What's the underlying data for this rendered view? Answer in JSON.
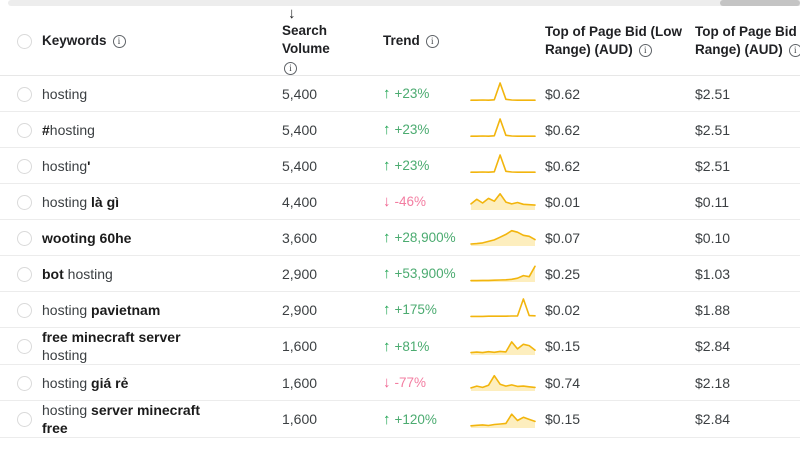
{
  "colors": {
    "trend_up_arrow": "#21a453",
    "trend_up_text": "#4bab70",
    "trend_down_arrow": "#f0628f",
    "trend_down_text": "#f37da1",
    "sparkline": "#f2b50d",
    "sparkline_fill": "#fdeebe",
    "text_dark": "#202124",
    "divider": "#ececec"
  },
  "table": {
    "headers": {
      "keywords": "Keywords",
      "sort_arrow": "↓",
      "search_volume": "Search Volume",
      "trend": "Trend",
      "bid_low": "Top of Page Bid (Low Range) (AUD)",
      "bid_high": "Top of Page Bid (High Range) (AUD)"
    },
    "rows": [
      {
        "keyword_parts": [
          {
            "text": "hosting",
            "bold": false
          }
        ],
        "search_volume": "5,400",
        "trend_direction": "up",
        "trend_value": "+23%",
        "bid_low": "$0.62",
        "bid_high": "$2.51",
        "sparkline": [
          0.07,
          0.07,
          0.08,
          0.07,
          0.09,
          1.0,
          0.12,
          0.08,
          0.07,
          0.07,
          0.07,
          0.07
        ],
        "spark_fill": false
      },
      {
        "keyword_parts": [
          {
            "text": "#",
            "bold": true
          },
          {
            "text": "hosting",
            "bold": false
          }
        ],
        "search_volume": "5,400",
        "trend_direction": "up",
        "trend_value": "+23%",
        "bid_low": "$0.62",
        "bid_high": "$2.51",
        "sparkline": [
          0.07,
          0.07,
          0.08,
          0.07,
          0.09,
          1.0,
          0.12,
          0.08,
          0.07,
          0.07,
          0.07,
          0.07
        ],
        "spark_fill": false
      },
      {
        "keyword_parts": [
          {
            "text": "hosting",
            "bold": false
          },
          {
            "text": "'",
            "bold": true
          }
        ],
        "search_volume": "5,400",
        "trend_direction": "up",
        "trend_value": "+23%",
        "bid_low": "$0.62",
        "bid_high": "$2.51",
        "sparkline": [
          0.07,
          0.07,
          0.08,
          0.07,
          0.09,
          1.0,
          0.12,
          0.08,
          0.07,
          0.07,
          0.07,
          0.07
        ],
        "spark_fill": false
      },
      {
        "keyword_parts": [
          {
            "text": "hosting ",
            "bold": false
          },
          {
            "text": "là gì",
            "bold": true
          }
        ],
        "search_volume": "4,400",
        "trend_direction": "down",
        "trend_value": "-46%",
        "bid_low": "$0.01",
        "bid_high": "$0.11",
        "sparkline": [
          0.3,
          0.55,
          0.35,
          0.6,
          0.45,
          0.85,
          0.4,
          0.3,
          0.38,
          0.28,
          0.26,
          0.24
        ],
        "spark_fill": true
      },
      {
        "keyword_parts": [
          {
            "text": "wooting 60he",
            "bold": true
          }
        ],
        "search_volume": "3,600",
        "trend_direction": "up",
        "trend_value": "+28,900%",
        "bid_low": "$0.07",
        "bid_high": "$0.10",
        "sparkline": [
          0.08,
          0.1,
          0.14,
          0.22,
          0.3,
          0.45,
          0.6,
          0.8,
          0.72,
          0.55,
          0.5,
          0.32
        ],
        "spark_fill": true
      },
      {
        "keyword_parts": [
          {
            "text": "bot",
            "bold": true
          },
          {
            "text": " hosting",
            "bold": false
          }
        ],
        "search_volume": "2,900",
        "trend_direction": "up",
        "trend_value": "+53,900%",
        "bid_low": "$0.25",
        "bid_high": "$1.03",
        "sparkline": [
          0.05,
          0.05,
          0.06,
          0.06,
          0.07,
          0.08,
          0.09,
          0.12,
          0.18,
          0.32,
          0.26,
          0.82
        ],
        "spark_fill": true
      },
      {
        "keyword_parts": [
          {
            "text": "hosting ",
            "bold": false
          },
          {
            "text": "pavietnam",
            "bold": true
          }
        ],
        "search_volume": "2,900",
        "trend_direction": "up",
        "trend_value": "+175%",
        "bid_low": "$0.02",
        "bid_high": "$1.88",
        "sparkline": [
          0.06,
          0.06,
          0.06,
          0.07,
          0.07,
          0.07,
          0.07,
          0.08,
          0.08,
          1.0,
          0.1,
          0.09
        ],
        "spark_fill": false
      },
      {
        "keyword_parts": [
          {
            "text": "free minecraft server",
            "bold": true
          },
          {
            "text": " hosting",
            "bold": false
          }
        ],
        "search_volume": "1,600",
        "trend_direction": "up",
        "trend_value": "+81%",
        "bid_low": "$0.15",
        "bid_high": "$2.84",
        "sparkline": [
          0.1,
          0.13,
          0.1,
          0.15,
          0.12,
          0.17,
          0.14,
          0.68,
          0.3,
          0.55,
          0.48,
          0.24
        ],
        "spark_fill": true
      },
      {
        "keyword_parts": [
          {
            "text": "hosting ",
            "bold": false
          },
          {
            "text": "giá rẻ",
            "bold": true
          }
        ],
        "search_volume": "1,600",
        "trend_direction": "down",
        "trend_value": "-77%",
        "bid_low": "$0.74",
        "bid_high": "$2.18",
        "sparkline": [
          0.14,
          0.24,
          0.17,
          0.28,
          0.8,
          0.34,
          0.24,
          0.3,
          0.22,
          0.24,
          0.2,
          0.17
        ],
        "spark_fill": true
      },
      {
        "keyword_parts": [
          {
            "text": "hosting ",
            "bold": false
          },
          {
            "text": "server minecraft free",
            "bold": true
          }
        ],
        "search_volume": "1,600",
        "trend_direction": "up",
        "trend_value": "+120%",
        "bid_low": "$0.15",
        "bid_high": "$2.84",
        "sparkline": [
          0.09,
          0.12,
          0.14,
          0.11,
          0.16,
          0.19,
          0.22,
          0.72,
          0.38,
          0.55,
          0.44,
          0.33
        ],
        "spark_fill": true
      }
    ]
  }
}
